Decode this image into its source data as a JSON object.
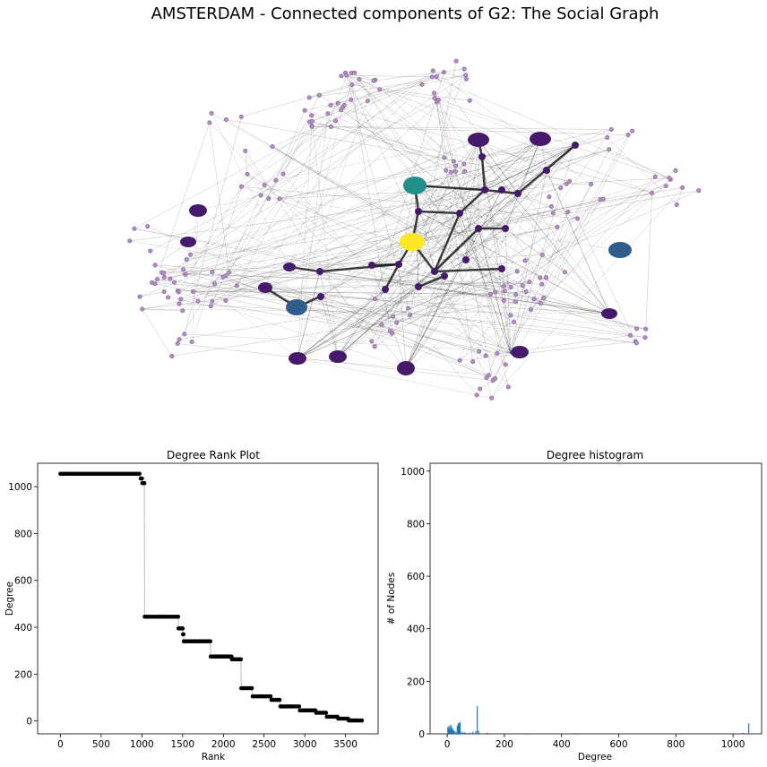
{
  "figure_title": "AMSTERDAM - Connected components of G2: The Social Graph",
  "chart_data": [
    {
      "type": "network",
      "title": "",
      "colors": {
        "small_node": "#b38fc4",
        "small_node_edge": "#7d5a92",
        "hub_dark": "#45196b",
        "hub_mid": "#3b3f8c",
        "hub_teal": "#22908a",
        "hub_yellow": "#fde725",
        "hub_blue": "#2f5e8c",
        "edge": "#1a1a1a"
      }
    },
    {
      "type": "scatter",
      "title": "Degree Rank Plot",
      "xlabel": "Rank",
      "ylabel": "Degree",
      "xlim": [
        -280,
        3900
      ],
      "ylim": [
        -55,
        1100
      ],
      "xticks": [
        0,
        500,
        1000,
        1500,
        2000,
        2500,
        3000,
        3500
      ],
      "yticks": [
        0,
        200,
        400,
        600,
        800,
        1000
      ],
      "line_color": "#c8c8c8",
      "marker_color": "#000000",
      "segments": [
        {
          "x_start": 0,
          "x_end": 970,
          "degree": 1055
        },
        {
          "x_start": 985,
          "x_end": 1000,
          "degree": 1035
        },
        {
          "x_start": 1005,
          "x_end": 1030,
          "degree": 1015
        },
        {
          "x_start": 1035,
          "x_end": 1445,
          "degree": 445
        },
        {
          "x_start": 1450,
          "x_end": 1500,
          "degree": 395
        },
        {
          "x_start": 1505,
          "x_end": 1510,
          "degree": 370
        },
        {
          "x_start": 1515,
          "x_end": 1840,
          "degree": 340
        },
        {
          "x_start": 1845,
          "x_end": 2100,
          "degree": 275
        },
        {
          "x_start": 2105,
          "x_end": 2215,
          "degree": 263
        },
        {
          "x_start": 2220,
          "x_end": 2350,
          "degree": 140
        },
        {
          "x_start": 2360,
          "x_end": 2580,
          "degree": 105
        },
        {
          "x_start": 2590,
          "x_end": 2690,
          "degree": 90
        },
        {
          "x_start": 2700,
          "x_end": 2930,
          "degree": 62
        },
        {
          "x_start": 2940,
          "x_end": 3130,
          "degree": 45
        },
        {
          "x_start": 3140,
          "x_end": 3260,
          "degree": 35
        },
        {
          "x_start": 3270,
          "x_end": 3400,
          "degree": 18
        },
        {
          "x_start": 3410,
          "x_end": 3530,
          "degree": 10
        },
        {
          "x_start": 3540,
          "x_end": 3700,
          "degree": 2
        }
      ]
    },
    {
      "type": "bar",
      "title": "Degree histogram",
      "xlabel": "Degree",
      "ylabel": "# of Nodes",
      "xlim": [
        -60,
        1100
      ],
      "ylim": [
        0,
        1030
      ],
      "xticks": [
        0,
        200,
        400,
        600,
        800,
        1000
      ],
      "yticks": [
        0,
        200,
        400,
        600,
        800,
        1000
      ],
      "bar_color": "#1f77b4",
      "degree": [
        2,
        4,
        6,
        8,
        10,
        12,
        15,
        18,
        20,
        22,
        25,
        30,
        35,
        38,
        40,
        42,
        45,
        50,
        55,
        60,
        65,
        70,
        80,
        90,
        100,
        105,
        110,
        140,
        263,
        275,
        340,
        370,
        395,
        445,
        1015,
        1035,
        1055
      ],
      "count": [
        25,
        12,
        30,
        18,
        22,
        35,
        28,
        15,
        20,
        10,
        12,
        8,
        30,
        36,
        42,
        40,
        45,
        8,
        5,
        6,
        4,
        3,
        5,
        8,
        10,
        105,
        12,
        5,
        2,
        3,
        2,
        1,
        2,
        3,
        2,
        5,
        40
      ]
    }
  ]
}
